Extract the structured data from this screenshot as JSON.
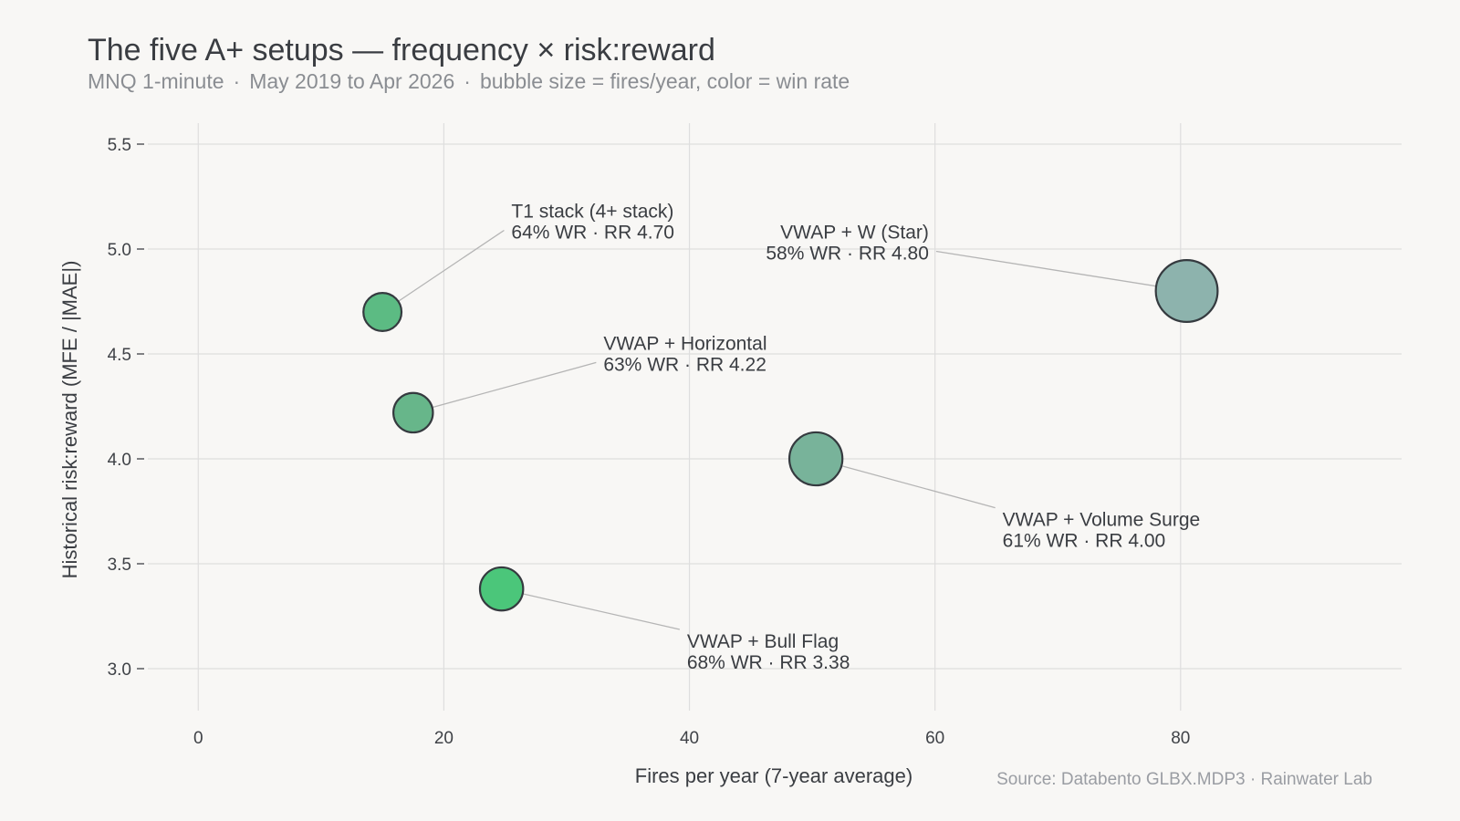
{
  "header": {
    "title": "The five A+ setups — frequency × risk:reward",
    "subtitle_parts": [
      "MNQ 1-minute",
      "May 2019 to Apr 2026",
      "bubble size = fires/year, color = win rate"
    ]
  },
  "footer": {
    "source": "Source: Databento GLBX.MDP3  ·  Rainwater Lab"
  },
  "chart_data": {
    "type": "scatter",
    "title": "The five A+ setups — frequency × risk:reward",
    "xlabel": "Fires per year (7-year average)",
    "ylabel": "Historical risk:reward (MFE / |MAE|)",
    "xlim": [
      -5,
      98
    ],
    "ylim": [
      2.8,
      5.6
    ],
    "xticks": [
      0,
      20,
      40,
      60,
      80
    ],
    "yticks": [
      3.0,
      3.5,
      4.0,
      4.5,
      5.0,
      5.5
    ],
    "xtick_labels": [
      "0",
      "20",
      "40",
      "60",
      "80"
    ],
    "ytick_labels": [
      "3.0",
      "3.5",
      "4.0",
      "4.5",
      "5.0",
      "5.5"
    ],
    "grid": true,
    "size_encoding": "fires/year",
    "color_encoding": "win rate",
    "points": [
      {
        "name": "T1 stack (4+ stack)",
        "detail": "64% WR · RR 4.70",
        "x": 15.0,
        "y": 4.7,
        "win_rate": 64,
        "color": "#5cbb83",
        "label_anchor": "start",
        "label_at": [
          25.5,
          5.15
        ]
      },
      {
        "name": "VWAP + W (Star)",
        "detail": "58% WR · RR 4.80",
        "x": 80.5,
        "y": 4.8,
        "win_rate": 58,
        "color": "#8db3ad",
        "label_anchor": "end",
        "label_at": [
          59.5,
          5.05
        ]
      },
      {
        "name": "VWAP + Horizontal",
        "detail": "63% WR · RR 4.22",
        "x": 17.5,
        "y": 4.22,
        "win_rate": 63,
        "color": "#67b68a",
        "label_anchor": "start",
        "label_at": [
          33.0,
          4.52
        ]
      },
      {
        "name": "VWAP + Volume Surge",
        "detail": "61% WR · RR 4.00",
        "x": 50.3,
        "y": 4.0,
        "win_rate": 61,
        "color": "#78b39a",
        "label_anchor": "start",
        "label_at": [
          65.5,
          3.68
        ]
      },
      {
        "name": "VWAP + Bull Flag",
        "detail": "68% WR · RR 3.38",
        "x": 24.7,
        "y": 3.38,
        "win_rate": 68,
        "color": "#4bc67a",
        "label_anchor": "start",
        "label_at": [
          39.8,
          3.1
        ]
      }
    ]
  }
}
